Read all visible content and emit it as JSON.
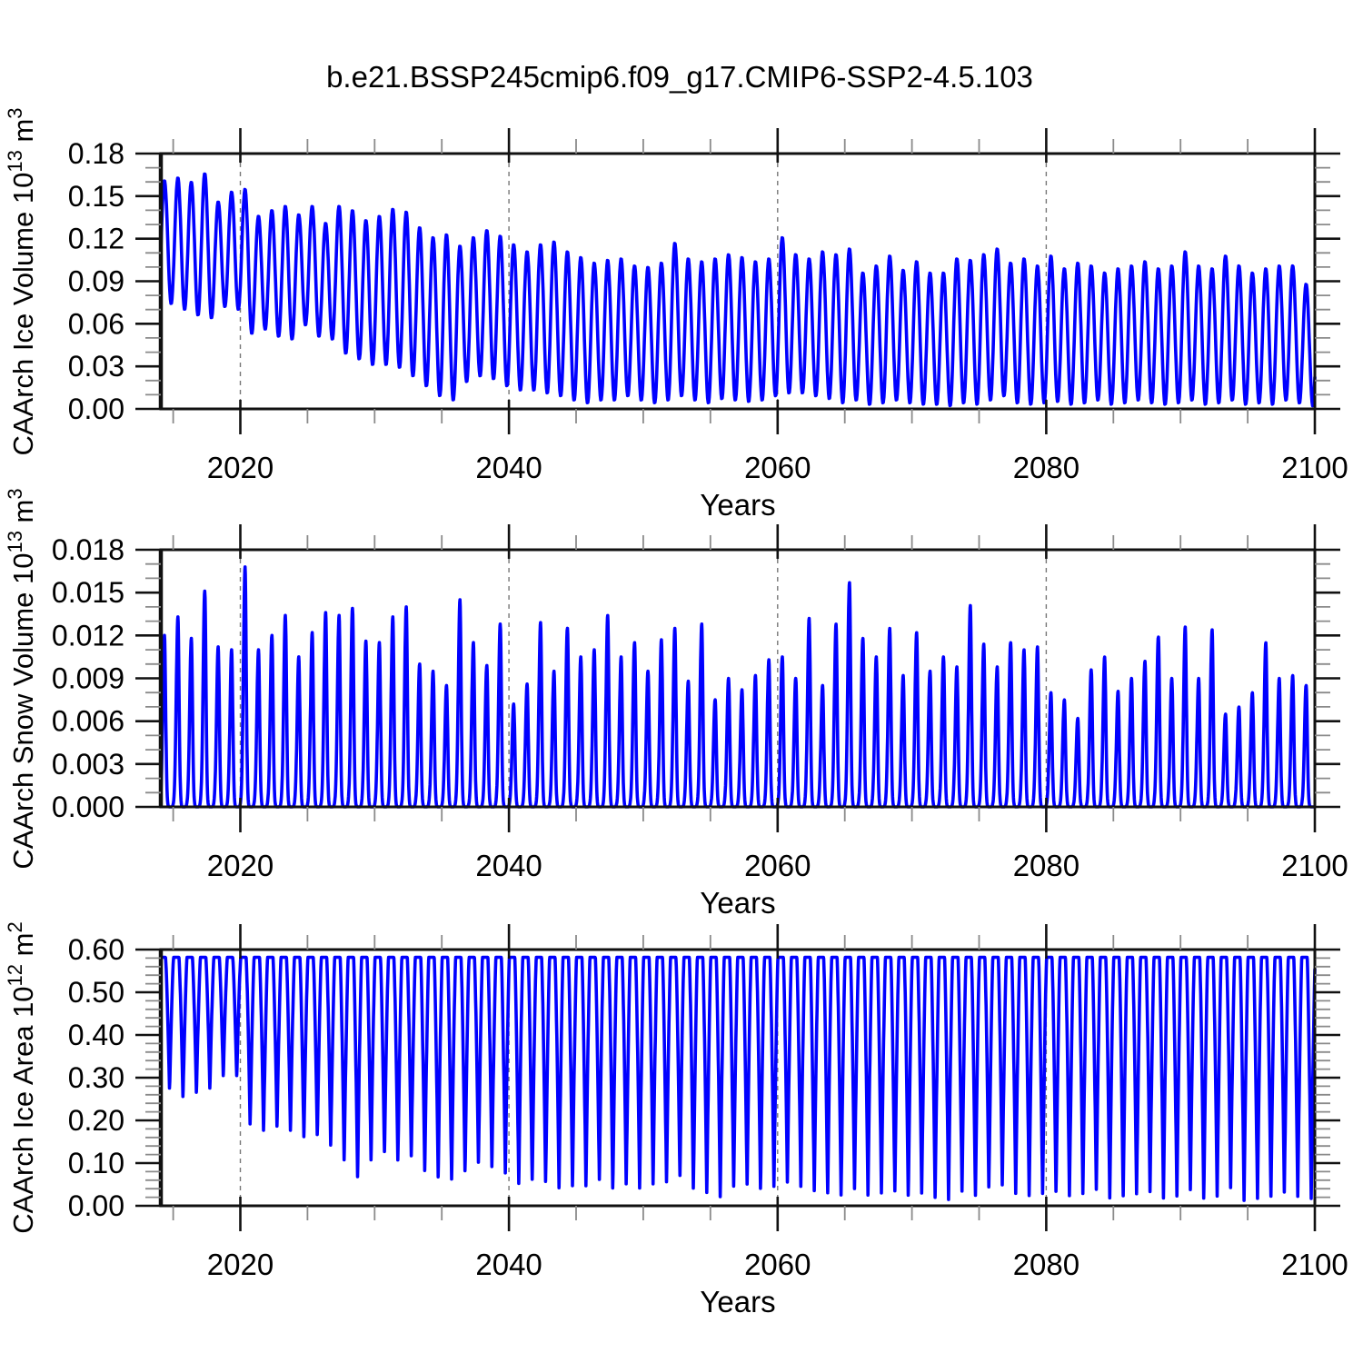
{
  "title": "b.e21.BSSP245cmip6.f09_g17.CMIP6-SSP2-4.5.103",
  "colors": {
    "series_line": "#0000ff",
    "gridline": "#777777",
    "axis_frame": "#111111",
    "major_tick": "#111111",
    "minor_tick": "#8a8a8a",
    "text": "#000000",
    "background": "#ffffff"
  },
  "x_axis": {
    "label": "Years",
    "xlim": [
      2014.08,
      2100
    ],
    "major_ticks": [
      2020,
      2040,
      2060,
      2080,
      2100
    ],
    "major_tick_labels": [
      "2020",
      "2040",
      "2060",
      "2080",
      "2100"
    ],
    "minor_tick_step": 5,
    "grid_years": [
      2020,
      2040,
      2060,
      2080
    ],
    "grid_style": "dashed"
  },
  "chart_data": [
    {
      "type": "line",
      "id": "ice-volume",
      "ylabel": "CAArch Ice Volume 10^13^ m^3^",
      "xlabel": "Years",
      "ylim": [
        0,
        0.18
      ],
      "yticks": [
        0,
        0.03,
        0.06,
        0.09,
        0.12,
        0.15,
        0.18
      ],
      "ytick_labels": [
        "0.00",
        "0.03",
        "0.06",
        "0.09",
        "0.12",
        "0.15",
        "0.18"
      ],
      "ytick_minor_step": 0.01,
      "shape": "seasonal_cycle",
      "note": "Monthly seasonal cycle; annual spring maxima (~year+0.35) and autumn minima (~year+0.85) read from plot",
      "years": [
        2013,
        2014,
        2015,
        2016,
        2017,
        2018,
        2019,
        2020,
        2021,
        2022,
        2023,
        2024,
        2025,
        2026,
        2027,
        2028,
        2029,
        2030,
        2031,
        2032,
        2033,
        2034,
        2035,
        2036,
        2037,
        2038,
        2039,
        2040,
        2041,
        2042,
        2043,
        2044,
        2045,
        2046,
        2047,
        2048,
        2049,
        2050,
        2051,
        2052,
        2053,
        2054,
        2055,
        2056,
        2057,
        2058,
        2059,
        2060,
        2061,
        2062,
        2063,
        2064,
        2065,
        2066,
        2067,
        2068,
        2069,
        2070,
        2071,
        2072,
        2073,
        2074,
        2075,
        2076,
        2077,
        2078,
        2079,
        2080,
        2081,
        2082,
        2083,
        2084,
        2085,
        2086,
        2087,
        2088,
        2089,
        2090,
        2091,
        2092,
        2093,
        2094,
        2095,
        2096,
        2097,
        2098,
        2099,
        2100
      ],
      "annual_max": [
        0.165,
        0.161,
        0.163,
        0.16,
        0.166,
        0.146,
        0.153,
        0.155,
        0.136,
        0.14,
        0.143,
        0.137,
        0.143,
        0.131,
        0.143,
        0.14,
        0.133,
        0.136,
        0.141,
        0.139,
        0.128,
        0.121,
        0.123,
        0.115,
        0.121,
        0.126,
        0.122,
        0.116,
        0.111,
        0.116,
        0.118,
        0.111,
        0.107,
        0.103,
        0.105,
        0.106,
        0.101,
        0.1,
        0.103,
        0.117,
        0.106,
        0.104,
        0.106,
        0.109,
        0.107,
        0.104,
        0.106,
        0.121,
        0.109,
        0.106,
        0.111,
        0.109,
        0.113,
        0.096,
        0.101,
        0.108,
        0.098,
        0.104,
        0.096,
        0.096,
        0.106,
        0.105,
        0.109,
        0.113,
        0.103,
        0.106,
        0.101,
        0.108,
        0.099,
        0.103,
        0.101,
        0.096,
        0.099,
        0.101,
        0.104,
        0.099,
        0.101,
        0.111,
        0.101,
        0.099,
        0.108,
        0.101,
        0.096,
        0.099,
        0.101,
        0.101,
        0.088,
        0.1
      ],
      "annual_min": [
        0.072,
        0.074,
        0.07,
        0.066,
        0.064,
        0.072,
        0.07,
        0.053,
        0.056,
        0.051,
        0.049,
        0.059,
        0.051,
        0.049,
        0.039,
        0.035,
        0.031,
        0.031,
        0.029,
        0.023,
        0.016,
        0.009,
        0.006,
        0.019,
        0.023,
        0.021,
        0.016,
        0.013,
        0.013,
        0.011,
        0.009,
        0.006,
        0.004,
        0.006,
        0.006,
        0.009,
        0.006,
        0.004,
        0.006,
        0.009,
        0.006,
        0.004,
        0.007,
        0.006,
        0.005,
        0.006,
        0.009,
        0.011,
        0.011,
        0.009,
        0.007,
        0.004,
        0.006,
        0.003,
        0.004,
        0.006,
        0.004,
        0.003,
        0.003,
        0.002,
        0.004,
        0.003,
        0.006,
        0.009,
        0.004,
        0.003,
        0.004,
        0.005,
        0.003,
        0.004,
        0.006,
        0.003,
        0.004,
        0.006,
        0.004,
        0.003,
        0.004,
        0.006,
        0.003,
        0.004,
        0.006,
        0.003,
        0.004,
        0.003,
        0.006,
        0.004,
        0.002,
        0.002
      ]
    },
    {
      "type": "line",
      "id": "snow-volume",
      "ylabel": "CAArch Snow Volume 10^13^ m^3^",
      "xlabel": "Years",
      "ylim": [
        0,
        0.018
      ],
      "yticks": [
        0,
        0.003,
        0.006,
        0.009,
        0.012,
        0.015,
        0.018
      ],
      "ytick_labels": [
        "0.000",
        "0.003",
        "0.006",
        "0.009",
        "0.012",
        "0.015",
        "0.018"
      ],
      "ytick_minor_step": 0.001,
      "shape": "spike",
      "note": "Sharp annual spikes peaking in spring (~year+0.35), returning to ~0 each summer; annual peak values read from plot",
      "years": [
        2014,
        2015,
        2016,
        2017,
        2018,
        2019,
        2020,
        2021,
        2022,
        2023,
        2024,
        2025,
        2026,
        2027,
        2028,
        2029,
        2030,
        2031,
        2032,
        2033,
        2034,
        2035,
        2036,
        2037,
        2038,
        2039,
        2040,
        2041,
        2042,
        2043,
        2044,
        2045,
        2046,
        2047,
        2048,
        2049,
        2050,
        2051,
        2052,
        2053,
        2054,
        2055,
        2056,
        2057,
        2058,
        2059,
        2060,
        2061,
        2062,
        2063,
        2064,
        2065,
        2066,
        2067,
        2068,
        2069,
        2070,
        2071,
        2072,
        2073,
        2074,
        2075,
        2076,
        2077,
        2078,
        2079,
        2080,
        2081,
        2082,
        2083,
        2084,
        2085,
        2086,
        2087,
        2088,
        2089,
        2090,
        2091,
        2092,
        2093,
        2094,
        2095,
        2096,
        2097,
        2098,
        2099
      ],
      "annual_peak": [
        0.012,
        0.0133,
        0.0118,
        0.0151,
        0.0112,
        0.011,
        0.0168,
        0.011,
        0.012,
        0.0134,
        0.0105,
        0.0122,
        0.0136,
        0.0134,
        0.0139,
        0.0116,
        0.0115,
        0.0133,
        0.014,
        0.01,
        0.0095,
        0.0085,
        0.0145,
        0.0115,
        0.0099,
        0.0128,
        0.0072,
        0.0086,
        0.0129,
        0.0095,
        0.0125,
        0.0105,
        0.011,
        0.0134,
        0.0105,
        0.0115,
        0.0095,
        0.0117,
        0.0125,
        0.0088,
        0.0128,
        0.0075,
        0.009,
        0.0082,
        0.0092,
        0.0103,
        0.0105,
        0.009,
        0.0132,
        0.0085,
        0.0128,
        0.0157,
        0.0118,
        0.0105,
        0.0125,
        0.0092,
        0.0122,
        0.0095,
        0.0105,
        0.0098,
        0.0141,
        0.0114,
        0.0098,
        0.0115,
        0.011,
        0.0112,
        0.008,
        0.0075,
        0.0062,
        0.0096,
        0.0105,
        0.0081,
        0.009,
        0.0102,
        0.0119,
        0.009,
        0.0126,
        0.009,
        0.0124,
        0.0065,
        0.007,
        0.008,
        0.0115,
        0.009,
        0.0092,
        0.0085
      ]
    },
    {
      "type": "line",
      "id": "ice-area",
      "ylabel": "CAArch Ice Area 10^12^ m^2^",
      "xlabel": "Years",
      "ylim": [
        0,
        0.6
      ],
      "yticks": [
        0,
        0.1,
        0.2,
        0.3,
        0.4,
        0.5,
        0.6
      ],
      "ytick_labels": [
        "0.00",
        "0.10",
        "0.20",
        "0.30",
        "0.40",
        "0.50",
        "0.60"
      ],
      "ytick_minor_step": 0.02,
      "shape": "plateau_dip",
      "plateau": 0.582,
      "note": "Winter plateau at ~0.58 with sharp summer minima (~year+0.73); annual minima read from plot",
      "years": [
        2014,
        2015,
        2016,
        2017,
        2018,
        2019,
        2020,
        2021,
        2022,
        2023,
        2024,
        2025,
        2026,
        2027,
        2028,
        2029,
        2030,
        2031,
        2032,
        2033,
        2034,
        2035,
        2036,
        2037,
        2038,
        2039,
        2040,
        2041,
        2042,
        2043,
        2044,
        2045,
        2046,
        2047,
        2048,
        2049,
        2050,
        2051,
        2052,
        2053,
        2054,
        2055,
        2056,
        2057,
        2058,
        2059,
        2060,
        2061,
        2062,
        2063,
        2064,
        2065,
        2066,
        2067,
        2068,
        2069,
        2070,
        2071,
        2072,
        2073,
        2074,
        2075,
        2076,
        2077,
        2078,
        2079,
        2080,
        2081,
        2082,
        2083,
        2084,
        2085,
        2086,
        2087,
        2088,
        2089,
        2090,
        2091,
        2092,
        2093,
        2094,
        2095,
        2096,
        2097,
        2098,
        2099
      ],
      "annual_min": [
        0.27,
        0.25,
        0.26,
        0.27,
        0.3,
        0.3,
        0.185,
        0.17,
        0.18,
        0.17,
        0.155,
        0.16,
        0.135,
        0.1,
        0.06,
        0.1,
        0.12,
        0.1,
        0.11,
        0.075,
        0.06,
        0.055,
        0.075,
        0.095,
        0.085,
        0.07,
        0.045,
        0.055,
        0.05,
        0.035,
        0.04,
        0.04,
        0.055,
        0.035,
        0.045,
        0.035,
        0.045,
        0.05,
        0.065,
        0.035,
        0.025,
        0.015,
        0.04,
        0.045,
        0.035,
        0.04,
        0.05,
        0.04,
        0.03,
        0.025,
        0.02,
        0.035,
        0.02,
        0.025,
        0.03,
        0.02,
        0.025,
        0.015,
        0.01,
        0.03,
        0.02,
        0.04,
        0.045,
        0.025,
        0.02,
        0.025,
        0.03,
        0.02,
        0.025,
        0.035,
        0.015,
        0.02,
        0.025,
        0.03,
        0.015,
        0.02,
        0.035,
        0.015,
        0.02,
        0.04,
        0.01,
        0.015,
        0.02,
        0.03,
        0.02,
        0.015
      ]
    }
  ]
}
